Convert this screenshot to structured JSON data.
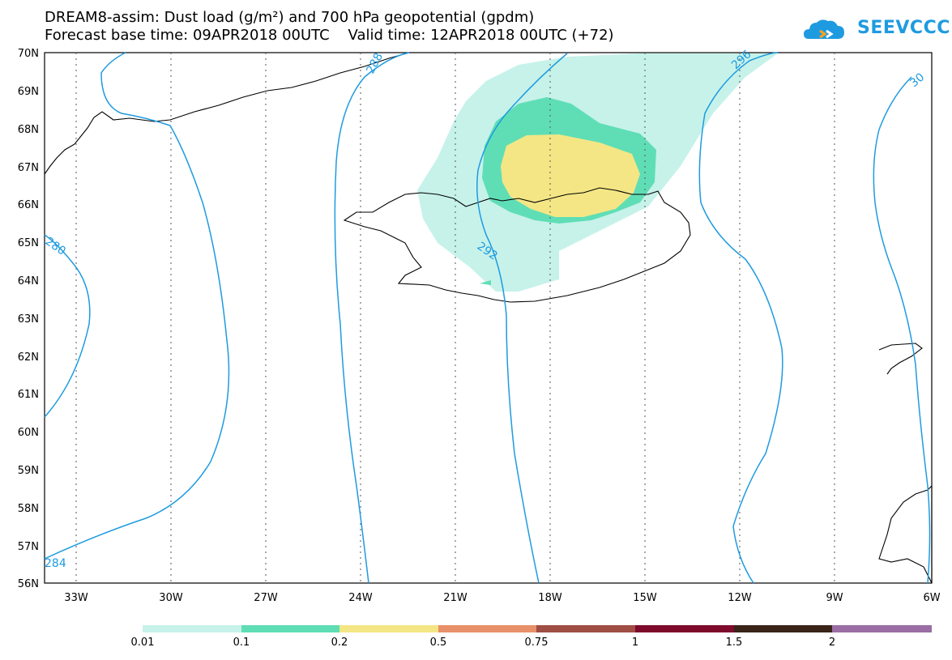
{
  "title": {
    "line1": "DREAM8-assim: Dust load (g/m²) and 700 hPa geopotential (gpdm)",
    "line2": "Forecast base time: 09APR2018 00UTC    Valid time: 12APR2018 00UTC (+72)"
  },
  "logo": {
    "text": "SEEVCCC"
  },
  "map": {
    "lat_labels": [
      "70N",
      "69N",
      "68N",
      "67N",
      "66N",
      "65N",
      "64N",
      "63N",
      "62N",
      "61N",
      "60N",
      "59N",
      "58N",
      "57N",
      "56N"
    ],
    "lon_labels": [
      "33W",
      "30W",
      "27W",
      "24W",
      "21W",
      "18W",
      "15W",
      "12W",
      "9W",
      "6W"
    ],
    "contour_labels": [
      {
        "text": "288"
      },
      {
        "text": "292"
      },
      {
        "text": "296"
      },
      {
        "text": "280"
      },
      {
        "text": "284"
      },
      {
        "text": "30"
      }
    ],
    "contour_color": "#1e9be0"
  },
  "legend": {
    "colors": [
      "#c6f2ea",
      "#5fdeb5",
      "#f4e685",
      "#e8906a",
      "#a04e44",
      "#7e0a2c",
      "#3a2418",
      "#9a6ea4"
    ],
    "labels": [
      "0.01",
      "0.1",
      "0.2",
      "0.5",
      "0.75",
      "1",
      "1.5",
      "2"
    ]
  }
}
